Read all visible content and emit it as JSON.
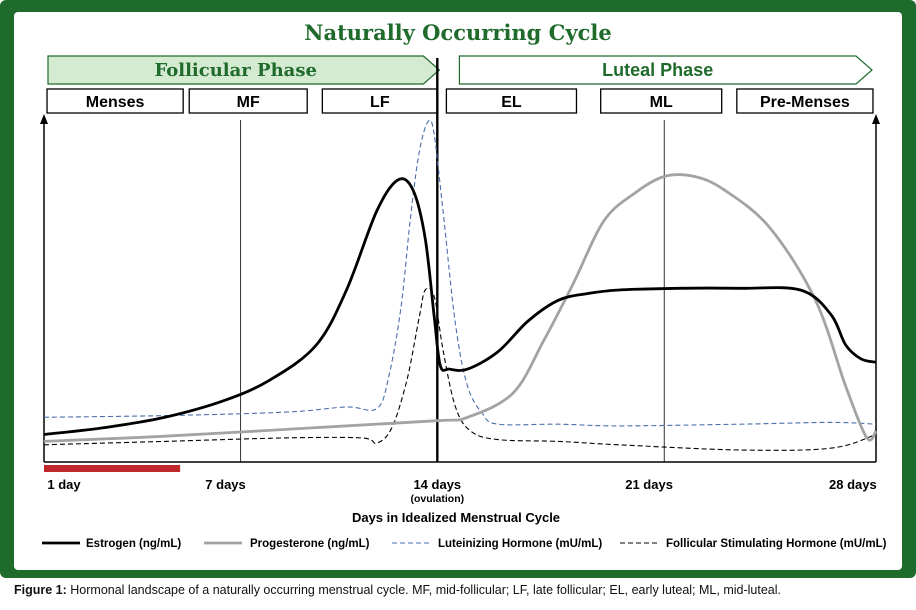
{
  "colors": {
    "frame": "#1f6b2c",
    "title": "#1f6b2c",
    "phase_fill": "#d4ead1",
    "phase_text": "#1f6b2c",
    "menses_bar": "#c0272d",
    "estrogen": "#000000",
    "progesterone": "#a3a3a3",
    "lh": "#4a6fa8",
    "fsh": "#000000"
  },
  "chart_data": {
    "type": "line",
    "title": "Naturally Occurring Cycle",
    "xlabel": "Days in Idealized Menstrual Cycle",
    "ylabel": "",
    "xlim": [
      1,
      28.5
    ],
    "ylim": [
      0,
      100
    ],
    "ticks": [
      {
        "day": 1,
        "label": "1 day",
        "sublabel": ""
      },
      {
        "day": 7,
        "label": "7 days",
        "sublabel": ""
      },
      {
        "day": 14,
        "label": "14 days",
        "sublabel": "(ovulation)"
      },
      {
        "day": 21,
        "label": "21 days",
        "sublabel": ""
      },
      {
        "day": 28,
        "label": "28 days",
        "sublabel": ""
      }
    ],
    "phases": [
      {
        "name": "Follicular Phase",
        "start": 1,
        "end": 14.2
      },
      {
        "name": "Luteal Phase",
        "start": 14.4,
        "end": 28.5
      }
    ],
    "subphases": [
      {
        "name": "Menses",
        "start": 1.1,
        "end": 5.6
      },
      {
        "name": "MF",
        "start": 5.8,
        "end": 9.7
      },
      {
        "name": "LF",
        "start": 10.2,
        "end": 14.0
      },
      {
        "name": "EL",
        "start": 14.3,
        "end": 18.6
      },
      {
        "name": "ML",
        "start": 19.4,
        "end": 23.4
      },
      {
        "name": "Pre-Menses",
        "start": 23.9,
        "end": 28.4
      }
    ],
    "ovulation_day": 14,
    "divider_days": [
      7.5,
      21.5
    ],
    "menses_bar": {
      "start": 1,
      "end": 5.5
    },
    "series": [
      {
        "name": "Estrogen (ng/mL)",
        "style": "solid-thick",
        "points": [
          [
            1,
            8
          ],
          [
            3,
            10
          ],
          [
            5,
            13
          ],
          [
            7,
            18
          ],
          [
            8.5,
            24
          ],
          [
            10,
            34
          ],
          [
            11,
            50
          ],
          [
            12,
            73
          ],
          [
            12.7,
            82
          ],
          [
            13.2,
            79
          ],
          [
            13.6,
            65
          ],
          [
            13.9,
            42
          ],
          [
            14.1,
            28
          ],
          [
            14.4,
            27
          ],
          [
            15,
            27
          ],
          [
            16,
            32
          ],
          [
            17,
            41
          ],
          [
            18,
            47
          ],
          [
            19,
            49
          ],
          [
            20,
            50
          ],
          [
            22,
            50.5
          ],
          [
            24,
            50.5
          ],
          [
            26,
            50
          ],
          [
            27,
            43
          ],
          [
            27.5,
            34
          ],
          [
            28,
            30
          ],
          [
            28.5,
            29
          ]
        ]
      },
      {
        "name": "Progesterone (ng/mL)",
        "style": "solid-gray",
        "points": [
          [
            1,
            6
          ],
          [
            5,
            7.5
          ],
          [
            10,
            10
          ],
          [
            14,
            12
          ],
          [
            15,
            13
          ],
          [
            16.5,
            20
          ],
          [
            17.5,
            35
          ],
          [
            18.5,
            52
          ],
          [
            19.5,
            70
          ],
          [
            20.5,
            78
          ],
          [
            21.5,
            83
          ],
          [
            22.5,
            83
          ],
          [
            23.5,
            79
          ],
          [
            25,
            68
          ],
          [
            26.5,
            47
          ],
          [
            27.5,
            22
          ],
          [
            28.2,
            7
          ],
          [
            28.5,
            9
          ]
        ]
      },
      {
        "name": "Luteinizing Hormone (mU/mL)",
        "style": "dashed-blue",
        "points": [
          [
            1,
            13
          ],
          [
            5,
            13.5
          ],
          [
            9,
            14.5
          ],
          [
            11,
            16
          ],
          [
            12,
            15.5
          ],
          [
            12.4,
            25
          ],
          [
            12.8,
            45
          ],
          [
            13.1,
            70
          ],
          [
            13.4,
            90
          ],
          [
            13.7,
            99
          ],
          [
            13.9,
            95
          ],
          [
            14.2,
            72
          ],
          [
            14.6,
            40
          ],
          [
            15,
            22
          ],
          [
            15.5,
            14
          ],
          [
            16,
            11
          ],
          [
            18,
            11
          ],
          [
            20,
            10.5
          ],
          [
            24,
            11
          ],
          [
            27,
            11.5
          ],
          [
            28.5,
            11
          ]
        ]
      },
      {
        "name": "Follicular Stimulating Hormone (mU/mL)",
        "style": "dashed-black",
        "points": [
          [
            1,
            5
          ],
          [
            5,
            6
          ],
          [
            9,
            7
          ],
          [
            11.5,
            7
          ],
          [
            12,
            5.5
          ],
          [
            12.5,
            10
          ],
          [
            13,
            24
          ],
          [
            13.4,
            42
          ],
          [
            13.6,
            50
          ],
          [
            13.9,
            48
          ],
          [
            14.2,
            32
          ],
          [
            14.6,
            16
          ],
          [
            15.1,
            9
          ],
          [
            16,
            6.5
          ],
          [
            18,
            6
          ],
          [
            20,
            5
          ],
          [
            24,
            3.5
          ],
          [
            27,
            4
          ],
          [
            28.5,
            8
          ]
        ]
      }
    ]
  },
  "caption": {
    "label": "Figure 1:",
    "text": " Hormonal landscape of a naturally occurring menstrual cycle. MF, mid-follicular; LF, late follicular; EL, early luteal; ML, mid-luteal."
  }
}
